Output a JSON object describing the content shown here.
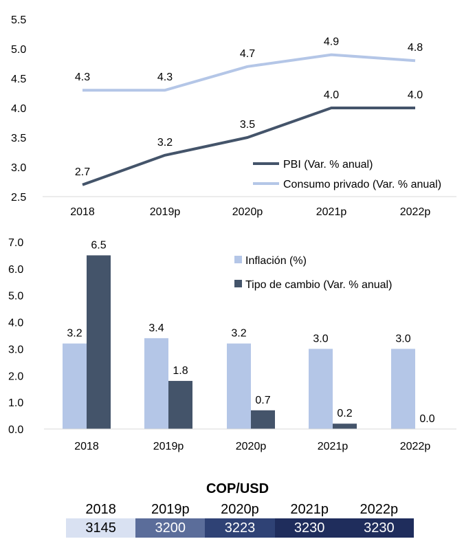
{
  "chart_data": [
    {
      "type": "line",
      "categories": [
        "2018",
        "2019p",
        "2020p",
        "2021p",
        "2022p"
      ],
      "series": [
        {
          "name": "PBI (Var. % anual)",
          "values": [
            2.7,
            3.2,
            3.5,
            4.0,
            4.0
          ],
          "color": "#44546a"
        },
        {
          "name": "Consumo privado (Var. % anual)",
          "values": [
            4.3,
            4.3,
            4.7,
            4.9,
            4.8
          ],
          "color": "#b4c6e7"
        }
      ],
      "y_ticks": [
        "2.5",
        "3.0",
        "3.5",
        "4.0",
        "4.5",
        "5.0",
        "5.5"
      ],
      "data_labels": [
        [
          "2.7",
          "3.2",
          "3.5",
          "4.0",
          "4.0"
        ],
        [
          "4.3",
          "4.3",
          "4.7",
          "4.9",
          "4.8"
        ]
      ],
      "ylim": [
        2.5,
        5.5
      ],
      "grid": false,
      "legend_position": "bottom-right"
    },
    {
      "type": "bar",
      "categories": [
        "2018",
        "2019p",
        "2020p",
        "2021p",
        "2022p"
      ],
      "series": [
        {
          "name": "Inflación (%)",
          "values": [
            3.2,
            3.4,
            3.2,
            3.0,
            3.0
          ],
          "color": "#b4c6e7"
        },
        {
          "name": "Tipo de cambio  (Var. % anual)",
          "values": [
            6.5,
            1.8,
            0.7,
            0.2,
            0.0
          ],
          "color": "#44546a"
        }
      ],
      "y_ticks": [
        "0.0",
        "1.0",
        "2.0",
        "3.0",
        "4.0",
        "5.0",
        "6.0",
        "7.0"
      ],
      "data_labels": [
        [
          "3.2",
          "3.4",
          "3.2",
          "3.0",
          "3.0"
        ],
        [
          "6.5",
          "1.8",
          "0.7",
          "0.2",
          "0.0"
        ]
      ],
      "ylim": [
        0,
        7
      ],
      "grid": false,
      "legend_position": "top-right"
    },
    {
      "type": "table",
      "title": "COP/USD",
      "columns": [
        "2018",
        "2019p",
        "2020p",
        "2021p",
        "2022p"
      ],
      "values": [
        "3145",
        "3200",
        "3223",
        "3230",
        "3230"
      ],
      "cell_colors": [
        "#d9e1f2",
        "#5b6d9a",
        "#2f4275",
        "#1f2d5c",
        "#1f2d5c"
      ],
      "text_colors": [
        "#000000",
        "#ffffff",
        "#ffffff",
        "#ffffff",
        "#ffffff"
      ]
    }
  ]
}
